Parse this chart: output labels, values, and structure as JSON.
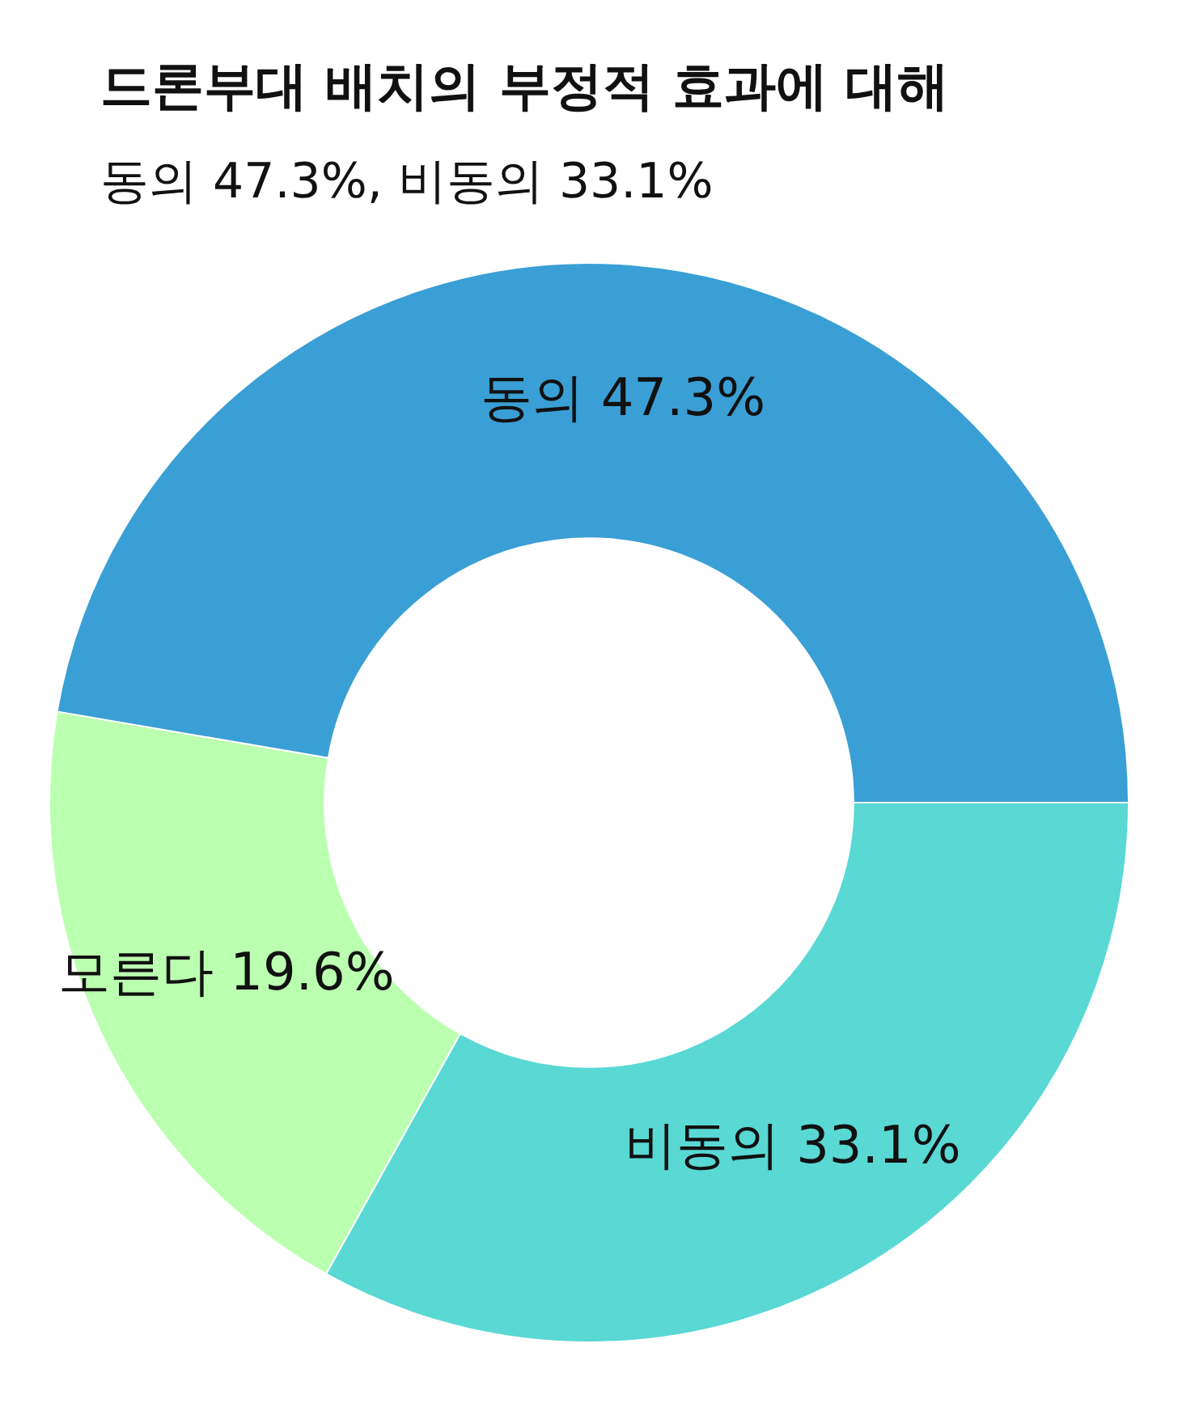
{
  "chart_data": {
    "type": "donut",
    "title": "드론부대 배치의 부정적 효과에 대해",
    "subtitle": "동의 47.3%, 비동의 33.1%",
    "categories": [
      "비동의",
      "모른다",
      "동의"
    ],
    "values": [
      33.1,
      19.6,
      47.3
    ],
    "colors": [
      "#59d8d4",
      "#bbffb0",
      "#3a9fd5"
    ],
    "value_labels": [
      "33.1%",
      "19.6%",
      "47.3%"
    ],
    "legend": false
  }
}
